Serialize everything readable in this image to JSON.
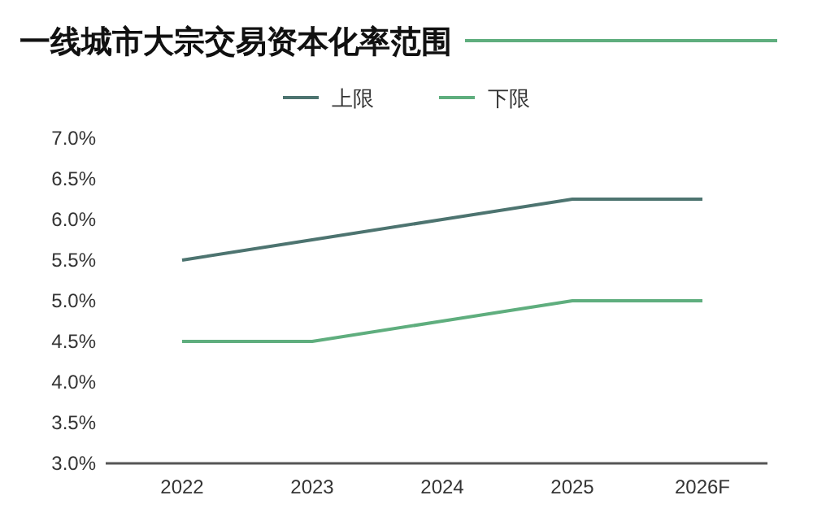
{
  "chart_data": {
    "type": "line",
    "title": "一线城市大宗交易资本化率范围",
    "categories": [
      "2022",
      "2023",
      "2024",
      "2025",
      "2026F"
    ],
    "series": [
      {
        "name": "上限",
        "color": "#4d7470",
        "values": [
          5.5,
          5.75,
          6.0,
          6.25,
          6.25
        ]
      },
      {
        "name": "下限",
        "color": "#5fae7e",
        "values": [
          4.5,
          4.5,
          4.75,
          5.0,
          5.0
        ]
      }
    ],
    "ylim": [
      3,
      7
    ],
    "yticks": [
      {
        "value": 3,
        "label": "3.0%"
      },
      {
        "value": 3.5,
        "label": "3.5%"
      },
      {
        "value": 4,
        "label": "4.0%"
      },
      {
        "value": 4.5,
        "label": "4.5%"
      },
      {
        "value": 5,
        "label": "5.0%"
      },
      {
        "value": 5.5,
        "label": "5.5%"
      },
      {
        "value": 6,
        "label": "6.0%"
      },
      {
        "value": 6.5,
        "label": "6.5%"
      },
      {
        "value": 7,
        "label": "7.0%"
      }
    ],
    "legend": "top",
    "grid": false,
    "marker": "none",
    "line_style": "solid"
  }
}
